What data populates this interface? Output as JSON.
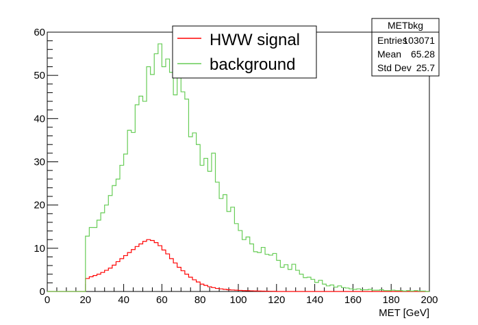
{
  "chart_data": {
    "type": "line",
    "title": "",
    "xlabel": "MET [GeV]",
    "ylabel": "",
    "xlim": [
      0,
      200
    ],
    "ylim": [
      0,
      60
    ],
    "xticks": [
      0,
      20,
      40,
      60,
      80,
      100,
      120,
      140,
      160,
      180,
      200
    ],
    "yticks": [
      0,
      10,
      20,
      30,
      40,
      50,
      60
    ],
    "bin_width": 2,
    "grid": false,
    "legend_placement": "top-center",
    "series": [
      {
        "name": "HWW signal",
        "color": "#ff0000",
        "values": [
          0,
          0,
          0,
          0,
          0,
          0,
          0,
          0,
          0,
          0,
          3.0,
          3.4,
          3.7,
          4.0,
          4.4,
          4.9,
          5.4,
          6.1,
          6.9,
          7.6,
          8.3,
          9.0,
          9.7,
          10.4,
          11.0,
          11.6,
          12.0,
          11.8,
          11.3,
          10.6,
          9.6,
          8.7,
          7.6,
          6.6,
          5.6,
          4.8,
          4.0,
          3.3,
          2.7,
          2.2,
          1.7,
          1.4,
          1.1,
          0.9,
          0.7,
          0.6,
          0.5,
          0.4,
          0.35,
          0.3,
          0.25,
          0.2,
          0.18,
          0.15,
          0.12,
          0.1,
          0.08,
          0.06,
          0.05,
          0.04,
          0,
          0,
          0,
          0,
          0,
          0,
          0,
          0,
          0,
          0,
          0,
          0,
          0,
          0,
          0,
          0,
          0,
          0,
          0,
          0,
          0,
          0,
          0,
          0,
          0,
          0,
          0,
          0,
          0,
          0,
          0,
          0,
          0,
          0,
          0,
          0,
          0,
          0,
          0,
          0
        ]
      },
      {
        "name": "background",
        "color": "#66cc55",
        "values": [
          0,
          0,
          0,
          0,
          0,
          0,
          0,
          0,
          0,
          0,
          12.8,
          14.8,
          14.8,
          16.5,
          18.2,
          20.0,
          22.2,
          24.5,
          26.0,
          29.2,
          31.8,
          37.3,
          36.8,
          43.2,
          45.2,
          44.0,
          52.0,
          50.2,
          55.0,
          57.3,
          52.0,
          53.8,
          50.7,
          45.5,
          49.4,
          46.2,
          44.5,
          35.8,
          36.7,
          34.0,
          29.2,
          30.8,
          27.8,
          32.0,
          25.3,
          21.5,
          22.4,
          18.5,
          19.5,
          15.7,
          14.1,
          12.0,
          12.6,
          11.0,
          9.2,
          9.0,
          10.2,
          8.6,
          8.4,
          8.8,
          7.2,
          5.6,
          6.2,
          5.1,
          6.3,
          4.9,
          4.0,
          3.2,
          3.3,
          2.8,
          2.1,
          2.6,
          1.7,
          1.3,
          1.5,
          1.0,
          1.3,
          0.9,
          0.8,
          0.6,
          0.5,
          0.6,
          0.4,
          0.4,
          0.5,
          0.3,
          0.3,
          0.4,
          0.2,
          0.2,
          0.3,
          0.2,
          0.2,
          0.1,
          0.2,
          0.1,
          0.2,
          0.1,
          0.1,
          0.0
        ]
      }
    ]
  },
  "stats_box": {
    "title": "METbkg",
    "rows": [
      {
        "label": "Entries",
        "value": "103071"
      },
      {
        "label": "Mean",
        "value": "65.28"
      },
      {
        "label": "Std Dev",
        "value": "25.7"
      }
    ]
  }
}
